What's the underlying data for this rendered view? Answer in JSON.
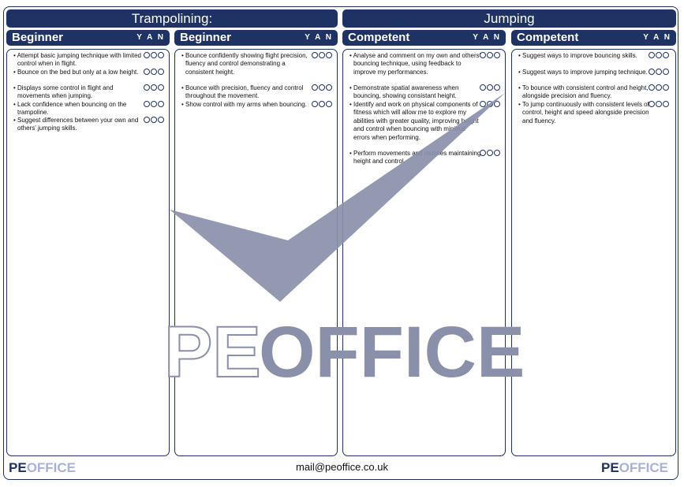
{
  "titles": {
    "left": "Trampolining:",
    "right": "Jumping"
  },
  "yan": "Y A N",
  "columns": [
    {
      "heading": "Beginner",
      "items": [
        "Attempt basic jumping technique with limited control when in flight.",
        "Bounce on the bed but only at a low height.",
        "Displays some control in flight and movements when jumping.",
        "Lack confidence when bouncing on the trampoline.",
        "Suggest differences between your own and others' jumping skills."
      ]
    },
    {
      "heading": "Beginner",
      "items": [
        "Bounce confidently showing flight precision, fluency and control demonstrating a consistent height.",
        "Bounce with precision, fluency and control throughout the movement.",
        "Show control with my arms when bouncing."
      ]
    },
    {
      "heading": "Competent",
      "items": [
        "Analyse and comment on my own and others' bouncing technique, using feedback to improve my performances.",
        "Demonstrate spatial awareness when bouncing, showing consistant height.",
        "Identify and work on physical components of fitness which will allow me to explore my abilities with greater quality, improving height and control when bouncing with minimal errors when performing.",
        "Perform movements and routines maintaining height and control."
      ]
    },
    {
      "heading": "Competent",
      "items": [
        "Suggest ways to improve bouncing skills.",
        "Suggest ways to improve jumping technique.",
        "To bounce with consistent control and height, alongside precision and fluency.",
        "To jump continuously with consistent levels of control, height and speed alongside precision and fluency."
      ]
    }
  ],
  "watermark": {
    "pe": "PE",
    "office": "OFFICE",
    "color": "#8a90aa"
  },
  "footer": {
    "email": "mail@peoffice.co.uk",
    "logo_pe": "PE",
    "logo_office": "OFFICE"
  },
  "colors": {
    "navy": "#1f3264"
  }
}
